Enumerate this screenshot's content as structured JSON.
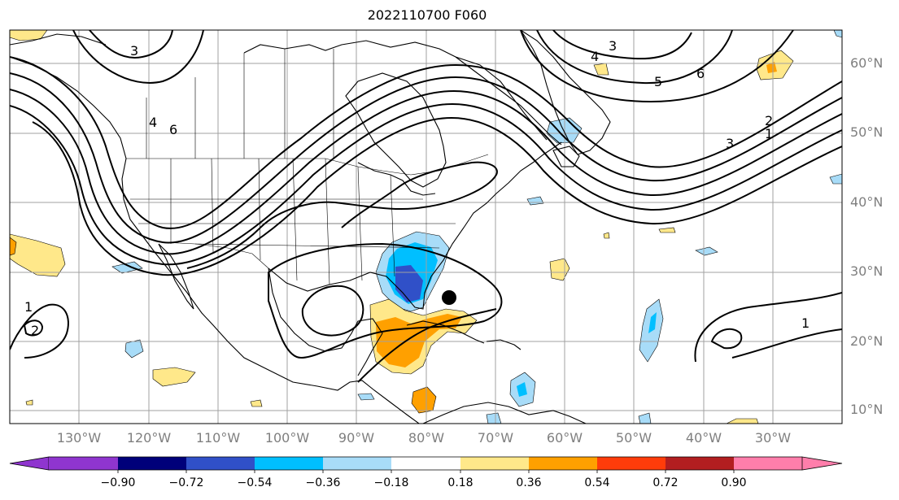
{
  "title": "2022110700 F060",
  "lat_labels": [
    "60°N",
    "50°N",
    "40°N",
    "30°N",
    "20°N",
    "10°N"
  ],
  "lon_labels": [
    "130°W",
    "120°W",
    "110°W",
    "100°W",
    "90°W",
    "80°W",
    "70°W",
    "60°W",
    "50°W",
    "40°W",
    "30°W"
  ],
  "colorbar": {
    "ticks": [
      "−0.90",
      "−0.72",
      "−0.54",
      "−0.36",
      "−0.18",
      "0.18",
      "0.36",
      "0.54",
      "0.72",
      "0.90"
    ],
    "colors": [
      "#8f35cf",
      "#00007a",
      "#3050c8",
      "#00bfff",
      "#a8dcf8",
      "#ffffff",
      "#ffe88a",
      "#ffa000",
      "#ff3c0a",
      "#b21e20",
      "#ff7eab"
    ]
  },
  "contour_labels": [
    "3",
    "4",
    "6",
    "3",
    "4",
    "5",
    "6",
    "1",
    "2",
    "3",
    "2",
    "1",
    "1"
  ],
  "colors": {
    "grid": "#a0a0a0",
    "axis_label": "#7f7f7f",
    "contour": "#000000",
    "land": "#000000"
  }
}
